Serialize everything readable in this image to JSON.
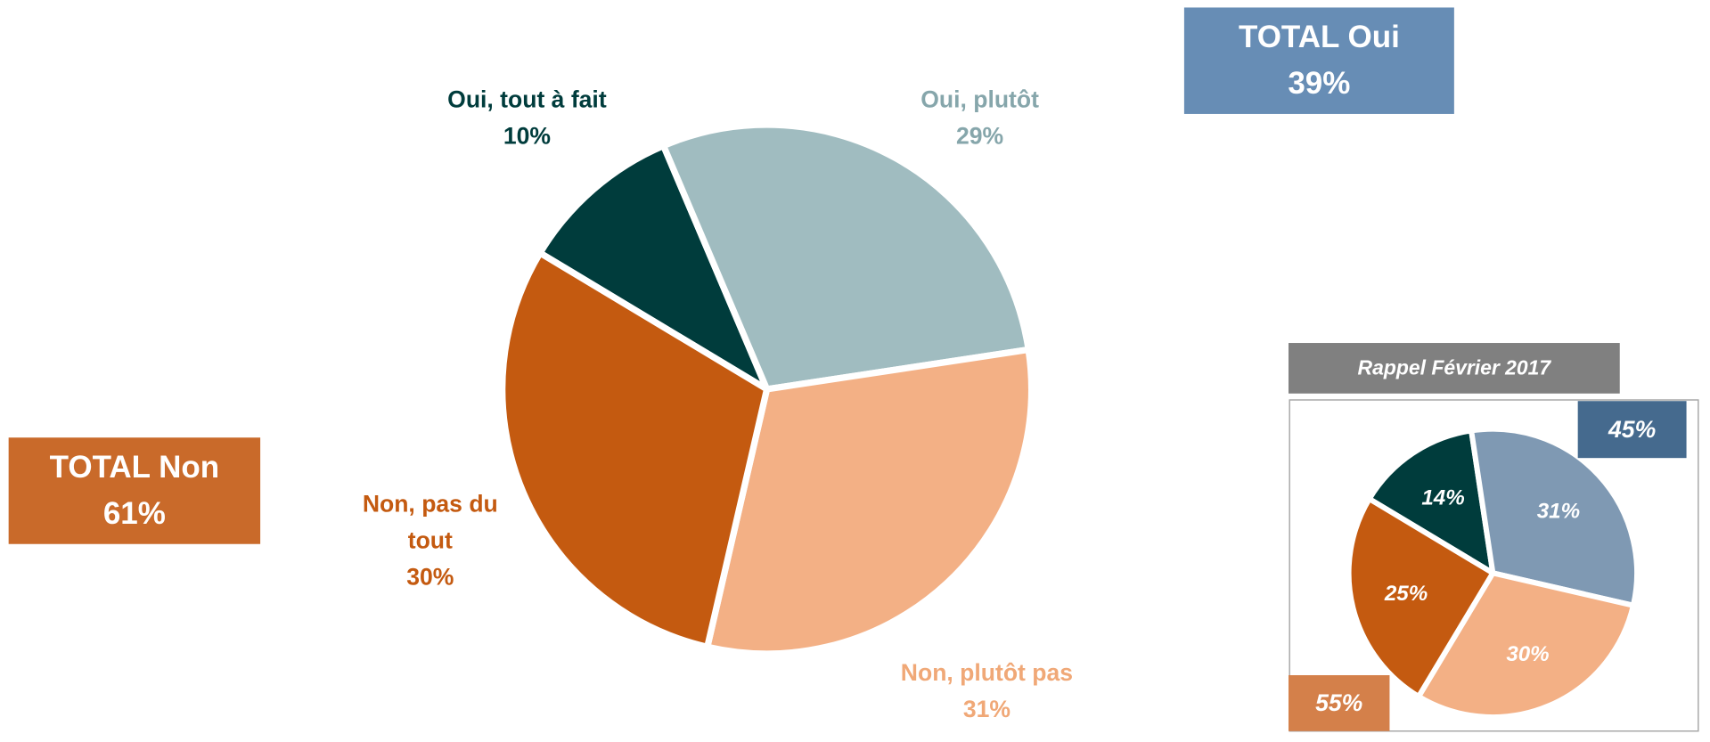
{
  "chart_data": [
    {
      "type": "pie",
      "categories": [
        "Oui, tout à fait",
        "Oui, plutôt",
        "Non, plutôt pas",
        "Non, pas du tout"
      ],
      "values": [
        10,
        29,
        31,
        30
      ],
      "value_labels": [
        "10%",
        "29%",
        "31%",
        "30%"
      ],
      "colors": [
        "#003c3c",
        "#a0bcc0",
        "#f3b085",
        "#c45a10"
      ],
      "totals": [
        {
          "label": "TOTAL Oui",
          "value": 39,
          "value_label": "39%",
          "color": "#678db5"
        },
        {
          "label": "TOTAL Non",
          "value": 61,
          "value_label": "61%",
          "color": "#c96a2a"
        }
      ]
    },
    {
      "type": "pie",
      "title": "Rappel Février 2017",
      "values": [
        14,
        31,
        30,
        25
      ],
      "value_labels": [
        "14%",
        "31%",
        "30%",
        "25%"
      ],
      "colors": [
        "#003c3c",
        "#7f99b3",
        "#f3b085",
        "#c45a10"
      ],
      "totals": [
        {
          "value": 45,
          "value_label": "45%",
          "color": "#456a8e"
        },
        {
          "value": 55,
          "value_label": "55%",
          "color": "#d4804a"
        }
      ]
    }
  ]
}
